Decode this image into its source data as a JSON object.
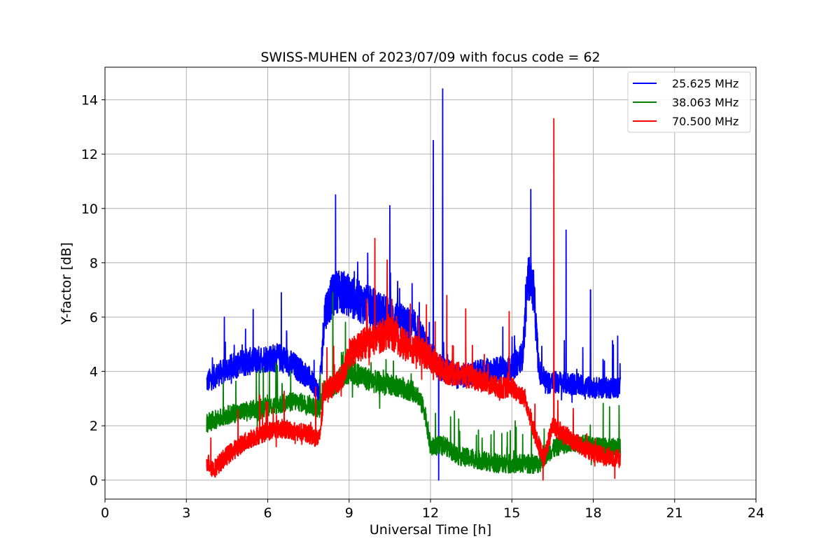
{
  "chart_data": {
    "type": "line",
    "title": "SWISS-MUHEN of 2023/07/09 with focus code = 62",
    "xlabel": "Universal Time [h]",
    "ylabel": "Y-factor [dB]",
    "xlim": [
      0,
      24
    ],
    "ylim": [
      -0.7,
      15.2
    ],
    "xticks": [
      0,
      3,
      6,
      9,
      12,
      15,
      18,
      21,
      24
    ],
    "yticks": [
      0,
      2,
      4,
      6,
      8,
      10,
      12,
      14
    ],
    "grid": true,
    "legend_position": "top-right",
    "series": [
      {
        "name": "25.625 MHz",
        "color": "#0000ff",
        "points": [
          [
            3.75,
            3.6
          ],
          [
            4.0,
            3.8
          ],
          [
            4.5,
            4.1
          ],
          [
            5.0,
            4.3
          ],
          [
            5.5,
            4.4
          ],
          [
            6.0,
            4.5
          ],
          [
            6.5,
            4.5
          ],
          [
            7.0,
            4.2
          ],
          [
            7.5,
            3.8
          ],
          [
            7.9,
            3.2
          ],
          [
            8.1,
            6.2
          ],
          [
            8.4,
            6.8
          ],
          [
            8.6,
            7.0
          ],
          [
            9.0,
            6.8
          ],
          [
            9.5,
            6.5
          ],
          [
            10.0,
            6.3
          ],
          [
            10.5,
            6.0
          ],
          [
            11.0,
            5.8
          ],
          [
            11.5,
            5.5
          ],
          [
            12.0,
            4.6
          ],
          [
            12.3,
            4.2
          ],
          [
            12.6,
            4.0
          ],
          [
            13.0,
            3.8
          ],
          [
            13.5,
            3.9
          ],
          [
            14.0,
            4.0
          ],
          [
            14.5,
            4.1
          ],
          [
            15.0,
            4.1
          ],
          [
            15.4,
            4.6
          ],
          [
            15.6,
            7.5
          ],
          [
            15.8,
            7.0
          ],
          [
            16.0,
            4.0
          ],
          [
            16.3,
            3.6
          ],
          [
            16.8,
            3.6
          ],
          [
            17.5,
            3.5
          ],
          [
            18.0,
            3.4
          ],
          [
            18.5,
            3.4
          ],
          [
            19.0,
            3.4
          ]
        ],
        "spikes": [
          [
            4.4,
            6.0
          ],
          [
            6.5,
            6.9
          ],
          [
            8.5,
            10.5
          ],
          [
            10.5,
            10.1
          ],
          [
            12.1,
            12.5
          ],
          [
            12.45,
            14.4
          ],
          [
            12.3,
            0.0
          ],
          [
            15.7,
            10.7
          ],
          [
            17.0,
            9.2
          ],
          [
            17.9,
            7.0
          ],
          [
            18.9,
            5.3
          ]
        ]
      },
      {
        "name": "38.063 MHz",
        "color": "#008000",
        "points": [
          [
            3.75,
            2.1
          ],
          [
            4.0,
            2.2
          ],
          [
            4.5,
            2.4
          ],
          [
            5.0,
            2.5
          ],
          [
            5.5,
            2.6
          ],
          [
            6.0,
            2.7
          ],
          [
            6.5,
            2.8
          ],
          [
            7.0,
            2.9
          ],
          [
            7.5,
            2.8
          ],
          [
            7.9,
            2.6
          ],
          [
            8.1,
            3.4
          ],
          [
            8.5,
            3.5
          ],
          [
            8.7,
            3.8
          ],
          [
            9.0,
            4.0
          ],
          [
            9.5,
            3.8
          ],
          [
            10.0,
            3.6
          ],
          [
            10.5,
            3.5
          ],
          [
            11.0,
            3.4
          ],
          [
            11.5,
            3.2
          ],
          [
            11.8,
            2.5
          ],
          [
            12.0,
            1.2
          ],
          [
            12.5,
            1.3
          ],
          [
            13.0,
            0.9
          ],
          [
            13.5,
            0.8
          ],
          [
            14.0,
            0.7
          ],
          [
            14.5,
            0.6
          ],
          [
            15.0,
            0.6
          ],
          [
            15.5,
            0.6
          ],
          [
            16.0,
            0.6
          ],
          [
            16.3,
            1.0
          ],
          [
            16.8,
            1.3
          ],
          [
            17.3,
            1.4
          ],
          [
            17.8,
            1.3
          ],
          [
            18.3,
            1.2
          ],
          [
            19.0,
            1.2
          ]
        ],
        "spikes": [
          [
            8.4,
            6.9
          ],
          [
            18.6,
            2.7
          ]
        ]
      },
      {
        "name": "70.500 MHz",
        "color": "#ff0000",
        "points": [
          [
            3.75,
            0.7
          ],
          [
            4.0,
            0.4
          ],
          [
            4.5,
            0.9
          ],
          [
            5.0,
            1.3
          ],
          [
            5.5,
            1.6
          ],
          [
            6.0,
            1.8
          ],
          [
            6.5,
            1.9
          ],
          [
            7.0,
            1.8
          ],
          [
            7.5,
            1.7
          ],
          [
            7.9,
            1.5
          ],
          [
            8.1,
            3.3
          ],
          [
            8.5,
            3.5
          ],
          [
            8.8,
            3.9
          ],
          [
            9.0,
            4.6
          ],
          [
            9.5,
            5.0
          ],
          [
            10.0,
            5.2
          ],
          [
            10.5,
            5.5
          ],
          [
            11.0,
            5.0
          ],
          [
            11.5,
            4.8
          ],
          [
            12.0,
            4.5
          ],
          [
            12.5,
            4.0
          ],
          [
            13.0,
            3.9
          ],
          [
            13.5,
            3.8
          ],
          [
            14.0,
            3.6
          ],
          [
            14.5,
            3.4
          ],
          [
            15.0,
            3.4
          ],
          [
            15.5,
            3.0
          ],
          [
            15.9,
            1.5
          ],
          [
            16.2,
            0.8
          ],
          [
            16.5,
            2.0
          ],
          [
            16.8,
            1.8
          ],
          [
            17.3,
            1.4
          ],
          [
            17.8,
            1.1
          ],
          [
            18.3,
            0.9
          ],
          [
            19.0,
            0.8
          ]
        ],
        "spikes": [
          [
            9.95,
            8.9
          ],
          [
            10.4,
            8.1
          ],
          [
            12.6,
            6.8
          ],
          [
            13.3,
            6.3
          ],
          [
            14.9,
            6.2
          ],
          [
            16.55,
            13.3
          ],
          [
            16.15,
            0.0
          ]
        ]
      }
    ]
  }
}
